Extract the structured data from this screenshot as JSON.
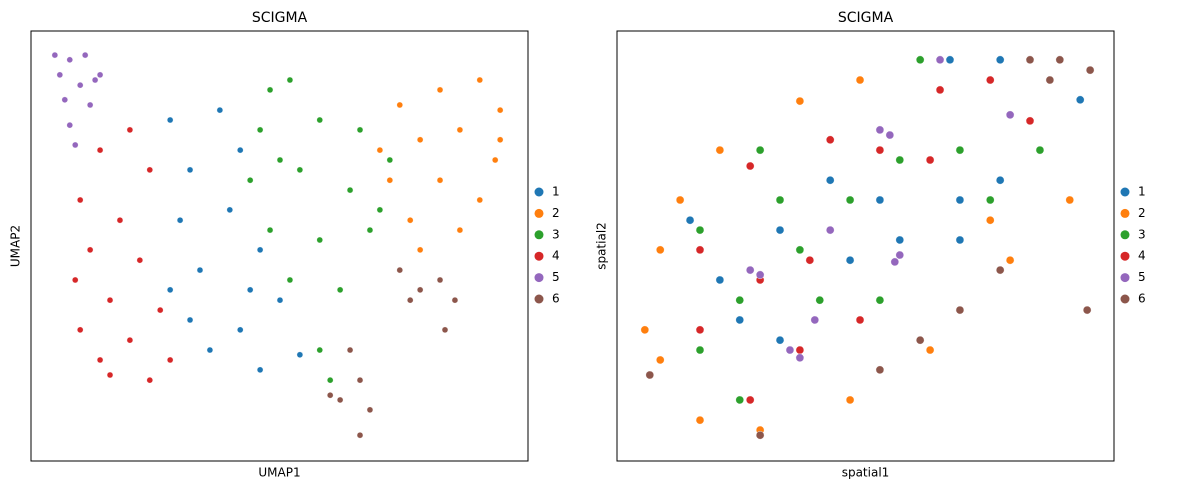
{
  "chart_data": [
    {
      "type": "scatter",
      "title": "SCIGMA",
      "xlabel": "UMAP1",
      "ylabel": "UMAP2",
      "xlim": [
        0,
        100
      ],
      "ylim": [
        0,
        100
      ],
      "legend": "right",
      "series": [
        {
          "name": "1",
          "color": "#1f77b4",
          "x": [
            28.0,
            38.0,
            32.0,
            42.1,
            30.0,
            40.0,
            46.1,
            34.0,
            44.1,
            32.0,
            42.1,
            50.1,
            36.0,
            46.1,
            54.1,
            28.0
          ],
          "y": [
            79.3,
            81.6,
            67.7,
            72.3,
            56.0,
            58.4,
            49.1,
            44.4,
            39.8,
            32.8,
            30.5,
            37.4,
            25.8,
            21.2,
            24.7,
            39.8
          ]
        },
        {
          "name": "2",
          "color": "#ff7f0e",
          "x": [
            74.2,
            82.3,
            90.3,
            94.4,
            78.3,
            86.3,
            93.4,
            72.2,
            82.3,
            90.3,
            76.3,
            86.3,
            78.3,
            94.4,
            70.2
          ],
          "y": [
            82.8,
            86.3,
            88.6,
            81.6,
            74.7,
            77.0,
            70.0,
            65.3,
            65.3,
            60.7,
            56.0,
            53.7,
            49.1,
            74.7,
            72.3
          ]
        },
        {
          "name": "3",
          "color": "#2ca02c",
          "x": [
            48.1,
            52.1,
            46.1,
            58.1,
            66.2,
            44.1,
            54.1,
            64.2,
            72.2,
            48.1,
            58.1,
            68.2,
            52.1,
            62.2,
            58.1,
            60.2,
            70.2,
            50.1
          ],
          "y": [
            86.3,
            88.6,
            77.0,
            79.3,
            77.0,
            65.3,
            67.7,
            63.0,
            70.0,
            53.7,
            51.4,
            53.7,
            42.1,
            39.8,
            25.8,
            18.8,
            58.4,
            70.0
          ]
        },
        {
          "name": "4",
          "color": "#d62728",
          "x": [
            9.9,
            13.9,
            19.9,
            23.9,
            11.9,
            17.9,
            21.9,
            15.9,
            26.0,
            9.9,
            19.9,
            28.0,
            15.9,
            23.9,
            13.9,
            8.9
          ],
          "y": [
            60.7,
            72.3,
            77.0,
            67.7,
            49.1,
            56.0,
            46.7,
            37.4,
            35.1,
            30.5,
            28.1,
            23.5,
            20.0,
            18.8,
            23.5,
            42.1
          ]
        },
        {
          "name": "5",
          "color": "#9467bd",
          "x": [
            4.8,
            7.8,
            10.9,
            5.8,
            9.9,
            12.9,
            6.8,
            11.9,
            7.8,
            8.9,
            13.9
          ],
          "y": [
            94.4,
            93.3,
            94.4,
            89.8,
            87.4,
            88.6,
            84.0,
            82.8,
            78.1,
            73.5,
            89.8
          ]
        },
        {
          "name": "6",
          "color": "#8c564b",
          "x": [
            74.2,
            78.3,
            82.3,
            85.3,
            76.3,
            83.3,
            64.2,
            66.2,
            62.2,
            68.2,
            66.2,
            60.2
          ],
          "y": [
            44.4,
            39.8,
            42.1,
            37.4,
            37.4,
            30.5,
            25.8,
            18.8,
            14.2,
            11.9,
            6.0,
            15.3
          ]
        }
      ]
    },
    {
      "type": "scatter",
      "title": "SCIGMA",
      "xlabel": "spatial1",
      "ylabel": "spatial2",
      "xlim": [
        0,
        100
      ],
      "ylim": [
        0,
        100
      ],
      "legend": "right",
      "series": [
        {
          "name": "1",
          "color": "#1f77b4",
          "x": [
            14.7,
            20.7,
            32.8,
            42.9,
            52.9,
            67.0,
            77.1,
            93.2,
            56.9,
            69.0,
            24.7,
            32.8,
            46.9,
            77.1,
            69.0
          ],
          "y": [
            56.0,
            42.1,
            53.7,
            65.3,
            60.7,
            93.3,
            93.3,
            84.0,
            51.4,
            51.4,
            32.8,
            28.1,
            46.7,
            65.3,
            60.7
          ]
        },
        {
          "name": "2",
          "color": "#ff7f0e",
          "x": [
            8.7,
            5.6,
            8.7,
            16.7,
            28.8,
            46.9,
            63.0,
            79.1,
            91.1,
            36.8,
            48.9,
            20.7,
            12.7,
            75.1
          ],
          "y": [
            49.1,
            30.5,
            23.5,
            9.5,
            7.2,
            14.2,
            25.8,
            46.7,
            60.7,
            83.7,
            88.6,
            72.3,
            60.7,
            56.0
          ]
        },
        {
          "name": "3",
          "color": "#2ca02c",
          "x": [
            16.7,
            24.7,
            32.8,
            46.9,
            56.9,
            69.0,
            85.1,
            61.0,
            28.8,
            16.7,
            40.8,
            52.9,
            75.1,
            24.7,
            36.8
          ],
          "y": [
            53.7,
            37.4,
            60.7,
            60.7,
            70.0,
            72.3,
            72.3,
            93.3,
            72.3,
            25.8,
            37.4,
            37.4,
            60.7,
            14.2,
            49.1
          ]
        },
        {
          "name": "4",
          "color": "#d62728",
          "x": [
            16.7,
            26.8,
            42.9,
            52.9,
            63.0,
            75.1,
            65.0,
            28.8,
            38.8,
            16.7,
            36.8,
            26.8,
            48.9,
            83.1
          ],
          "y": [
            49.1,
            68.6,
            74.7,
            72.3,
            70.0,
            88.6,
            86.3,
            42.1,
            46.7,
            30.5,
            25.8,
            14.2,
            32.8,
            79.1
          ]
        },
        {
          "name": "5",
          "color": "#9467bd",
          "x": [
            52.9,
            54.9,
            56.9,
            55.9,
            28.8,
            26.8,
            34.8,
            36.8,
            39.8,
            42.9,
            65.0,
            79.1
          ],
          "y": [
            77.0,
            75.8,
            47.9,
            46.3,
            43.3,
            44.4,
            25.8,
            24.0,
            32.8,
            53.7,
            93.3,
            80.5
          ]
        },
        {
          "name": "6",
          "color": "#8c564b",
          "x": [
            83.1,
            89.1,
            95.2,
            87.1,
            77.1,
            69.0,
            61.0,
            52.9,
            28.8,
            6.6,
            94.6
          ],
          "y": [
            93.3,
            93.3,
            90.9,
            88.6,
            44.4,
            35.1,
            28.1,
            21.2,
            6.0,
            20.0,
            35.1
          ]
        }
      ]
    }
  ]
}
